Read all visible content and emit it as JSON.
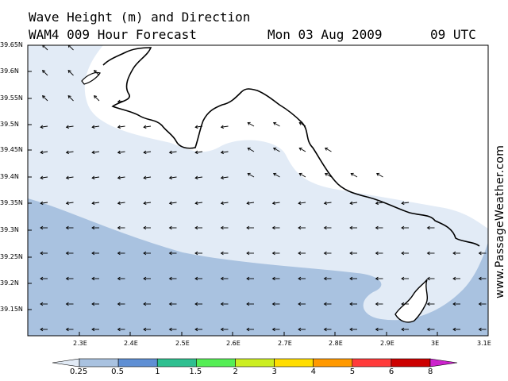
{
  "title": {
    "line1": "Wave Height (m) and Direction",
    "model": "WAM4 009 Hour Forecast",
    "date": "Mon 03 Aug 2009",
    "time": "09 UTC"
  },
  "watermark": "www.PassageWeather.com",
  "map": {
    "lat_labels": [
      "39.65N",
      "39.6N",
      "39.55N",
      "39.5N",
      "39.45N",
      "39.4N",
      "39.35N",
      "39.3N",
      "39.25N",
      "39.2N",
      "39.15N"
    ],
    "lon_labels": [
      "2.3E",
      "2.4E",
      "2.5E",
      "2.6E",
      "2.7E",
      "2.8E",
      "2.9E",
      "3E",
      "3.1E"
    ],
    "colors": {
      "band_lt_025": "#e2ebf6",
      "band_025_05": "#a9c2e0",
      "land": "#ffffff",
      "coast": "#000000"
    }
  },
  "colorbar": {
    "labels": [
      "0.25",
      "0.5",
      "1",
      "1.5",
      "2",
      "3",
      "4",
      "5",
      "6",
      "8"
    ],
    "colors": [
      "#e2ebf6",
      "#a9c2e0",
      "#5f8fd4",
      "#2fbf90",
      "#55ee55",
      "#ccee22",
      "#ffdd00",
      "#ff9900",
      "#ff3b3b",
      "#cc0000",
      "#cc22cc"
    ]
  }
}
